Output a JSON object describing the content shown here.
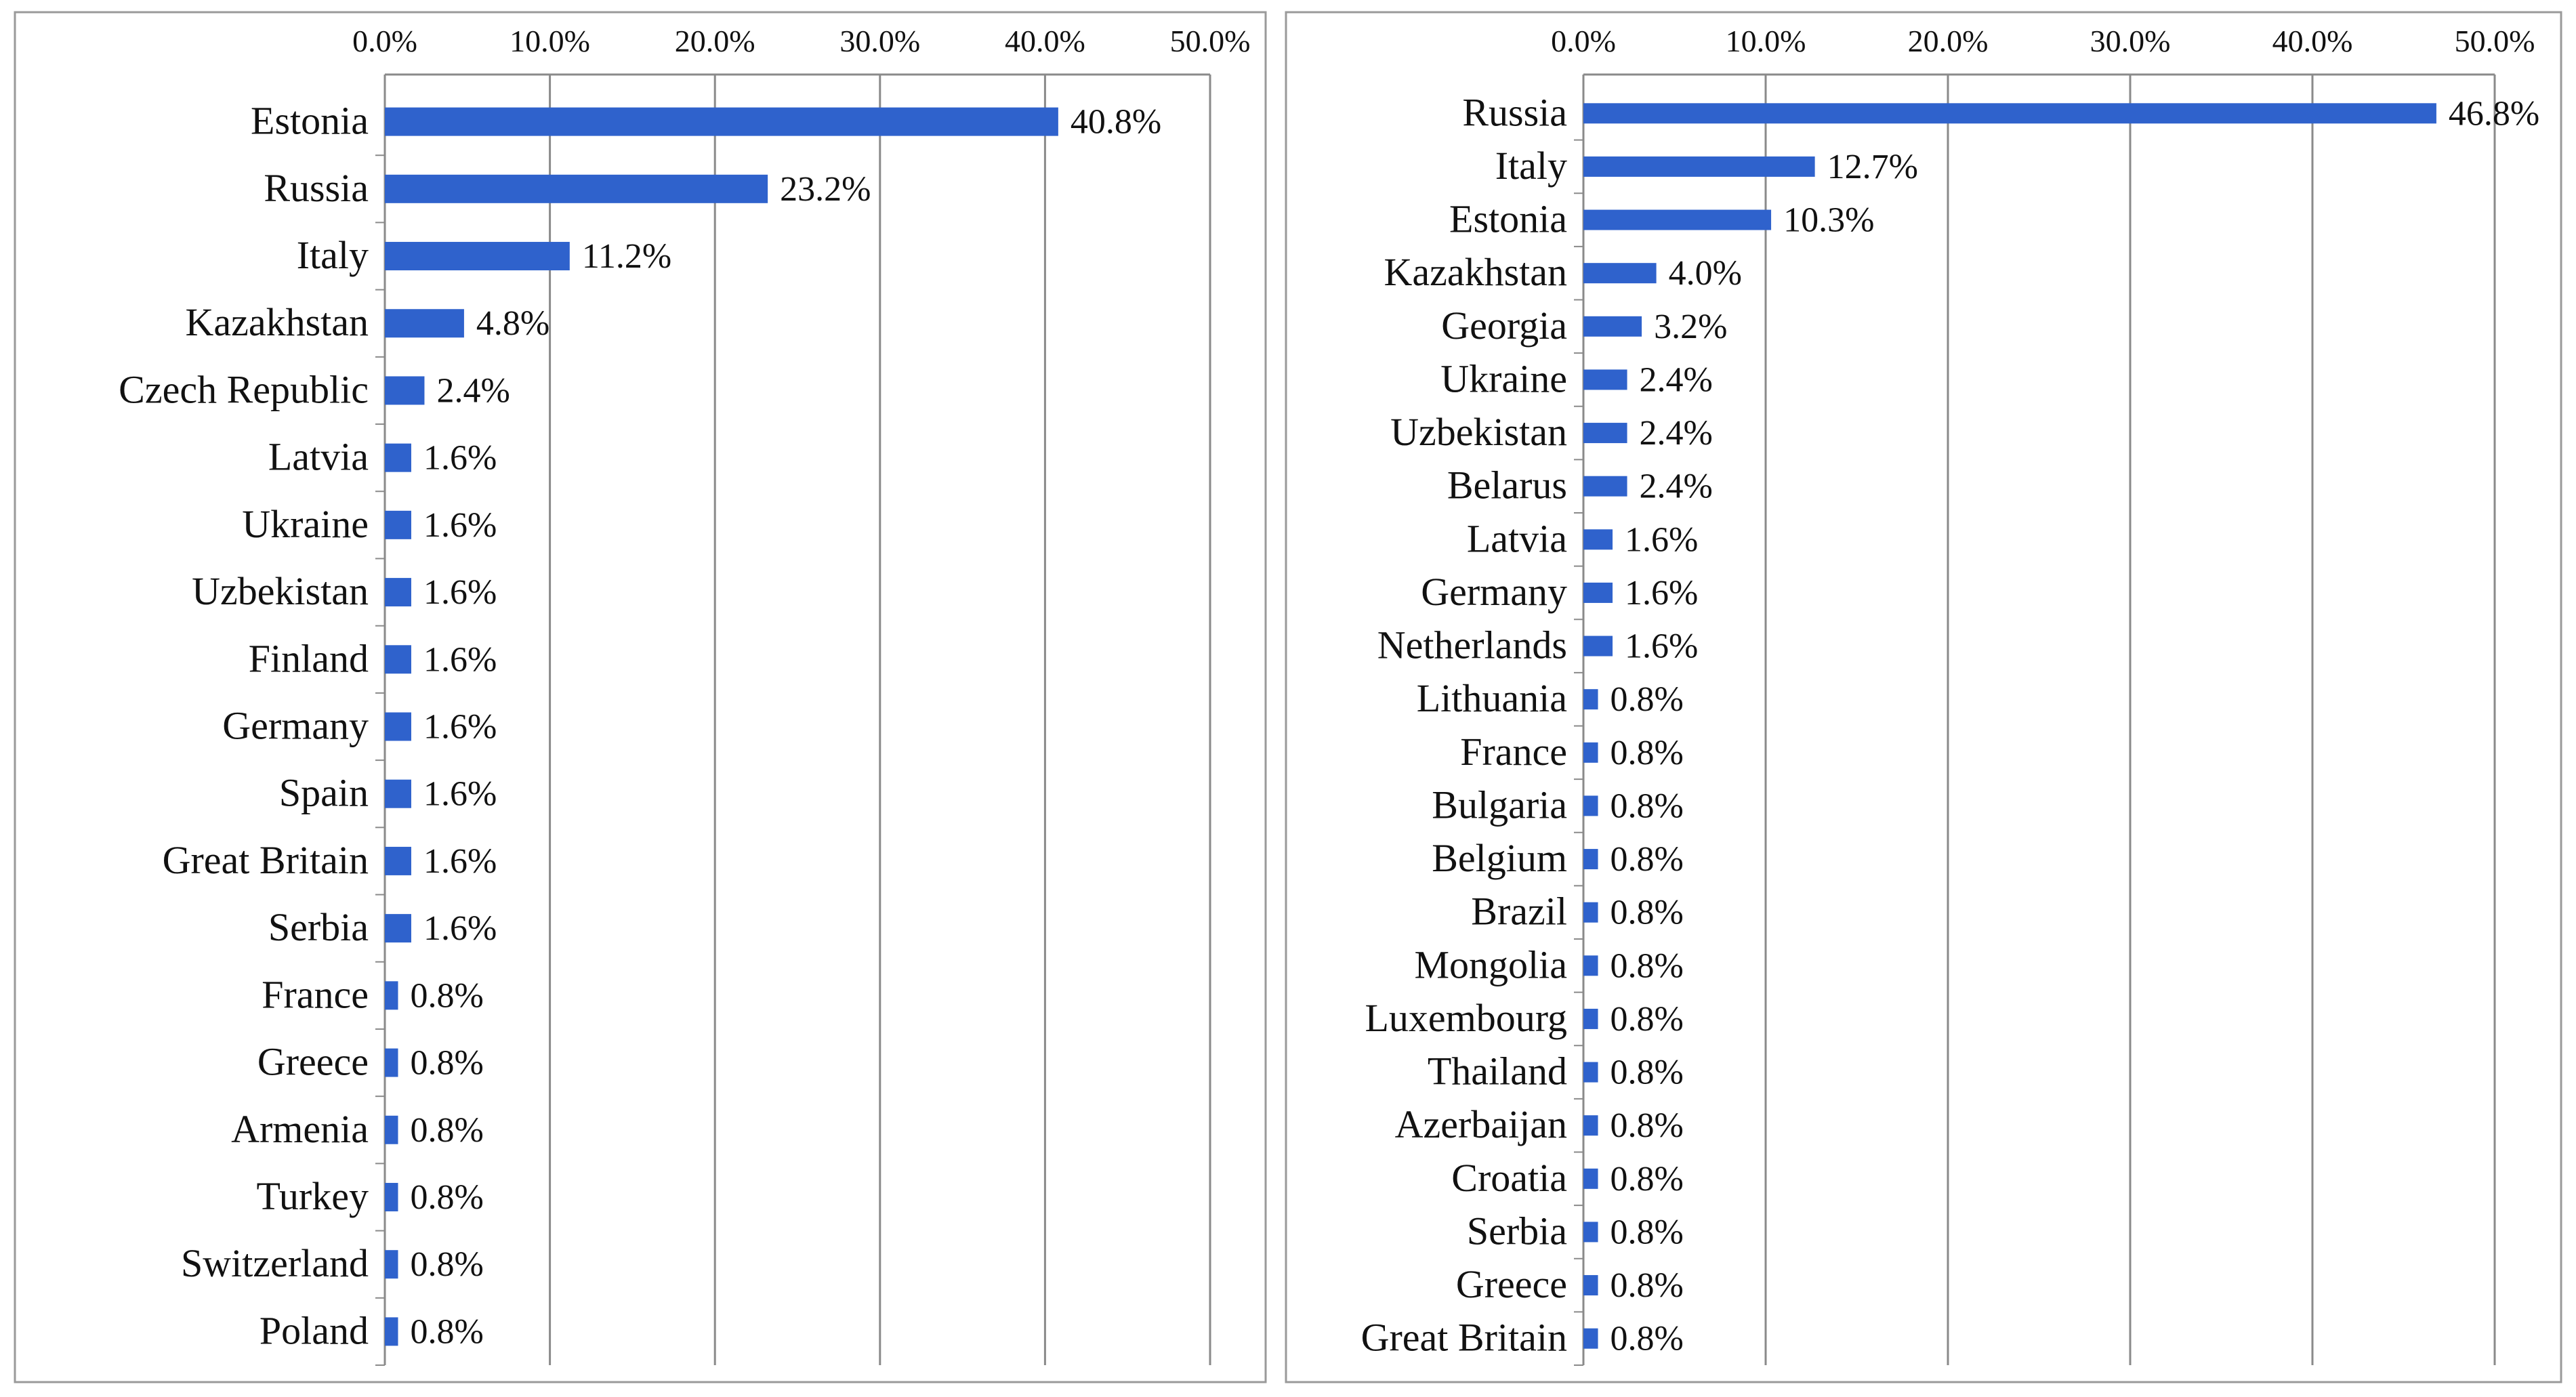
{
  "colors": {
    "bar": "#2f62cc",
    "grid": "#8a8a8a",
    "border": "#9a9a9a",
    "text": "#111111"
  },
  "chart_data": [
    {
      "type": "bar",
      "orientation": "horizontal",
      "xlim": [
        0,
        50
      ],
      "ticks": [
        "0.0%",
        "10.0%",
        "20.0%",
        "30.0%",
        "40.0%",
        "50.0%"
      ],
      "tick_axis_position": "top",
      "grid": true,
      "categories": [
        "Estonia",
        "Russia",
        "Italy",
        "Kazakhstan",
        "Czech Republic",
        "Latvia",
        "Ukraine",
        "Uzbekistan",
        "Finland",
        "Germany",
        "Spain",
        "Great Britain",
        "Serbia",
        "France",
        "Greece",
        "Armenia",
        "Turkey",
        "Switzerland",
        "Poland"
      ],
      "values": [
        40.8,
        23.2,
        11.2,
        4.8,
        2.4,
        1.6,
        1.6,
        1.6,
        1.6,
        1.6,
        1.6,
        1.6,
        1.6,
        0.8,
        0.8,
        0.8,
        0.8,
        0.8,
        0.8
      ],
      "labels": [
        "40.8%",
        "23.2%",
        "11.2%",
        "4.8%",
        "2.4%",
        "1.6%",
        "1.6%",
        "1.6%",
        "1.6%",
        "1.6%",
        "1.6%",
        "1.6%",
        "1.6%",
        "0.8%",
        "0.8%",
        "0.8%",
        "0.8%",
        "0.8%",
        "0.8%"
      ]
    },
    {
      "type": "bar",
      "orientation": "horizontal",
      "xlim": [
        0,
        50
      ],
      "ticks": [
        "0.0%",
        "10.0%",
        "20.0%",
        "30.0%",
        "40.0%",
        "50.0%"
      ],
      "tick_axis_position": "top",
      "grid": true,
      "categories": [
        "Russia",
        "Italy",
        "Estonia",
        "Kazakhstan",
        "Georgia",
        "Ukraine",
        "Uzbekistan",
        "Belarus",
        "Latvia",
        "Germany",
        "Netherlands",
        "Lithuania",
        "France",
        "Bulgaria",
        "Belgium",
        "Brazil",
        "Mongolia",
        "Luxembourg",
        "Thailand",
        "Azerbaijan",
        "Croatia",
        "Serbia",
        "Greece",
        "Great Britain"
      ],
      "values": [
        46.8,
        12.7,
        10.3,
        4.0,
        3.2,
        2.4,
        2.4,
        2.4,
        1.6,
        1.6,
        1.6,
        0.8,
        0.8,
        0.8,
        0.8,
        0.8,
        0.8,
        0.8,
        0.8,
        0.8,
        0.8,
        0.8,
        0.8,
        0.8
      ],
      "labels": [
        "46.8%",
        "12.7%",
        "10.3%",
        "4.0%",
        "3.2%",
        "2.4%",
        "2.4%",
        "2.4%",
        "1.6%",
        "1.6%",
        "1.6%",
        "0.8%",
        "0.8%",
        "0.8%",
        "0.8%",
        "0.8%",
        "0.8%",
        "0.8%",
        "0.8%",
        "0.8%",
        "0.8%",
        "0.8%",
        "0.8%",
        "0.8%"
      ]
    }
  ]
}
